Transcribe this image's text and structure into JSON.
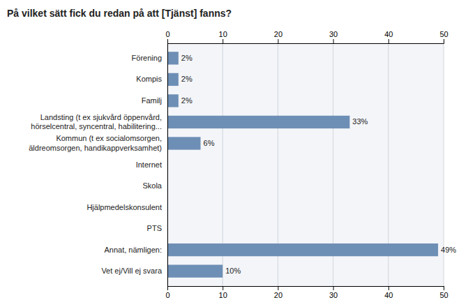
{
  "chart_data": {
    "type": "bar",
    "orientation": "horizontal",
    "title": "På vilket sätt fick du redan på att [Tjänst] fanns?",
    "categories": [
      "Förening",
      "Kompis",
      "Familj",
      "Landsting (t ex sjukvård öppenvård,\nhörselcentral, syncentral, habilitering...",
      "Kommun (t ex socialomsorgen,\näldreomsorgen, handikappverksamhet)",
      "Internet",
      "Skola",
      "Hjälpmedelskonsulent",
      "PTS",
      "Annat, nämligen:",
      "Vet ej/Vill ej svara"
    ],
    "values": [
      2,
      2,
      2,
      33,
      6,
      0,
      0,
      0,
      0,
      49,
      10
    ],
    "value_labels": [
      "2%",
      "2%",
      "2%",
      "33%",
      "6%",
      null,
      null,
      null,
      null,
      "49%",
      "10%"
    ],
    "data_labels": true,
    "color": "#6e8fb5",
    "xlim": [
      0,
      50
    ],
    "xticks": [
      0,
      10,
      20,
      30,
      40,
      50
    ],
    "grid": true
  }
}
